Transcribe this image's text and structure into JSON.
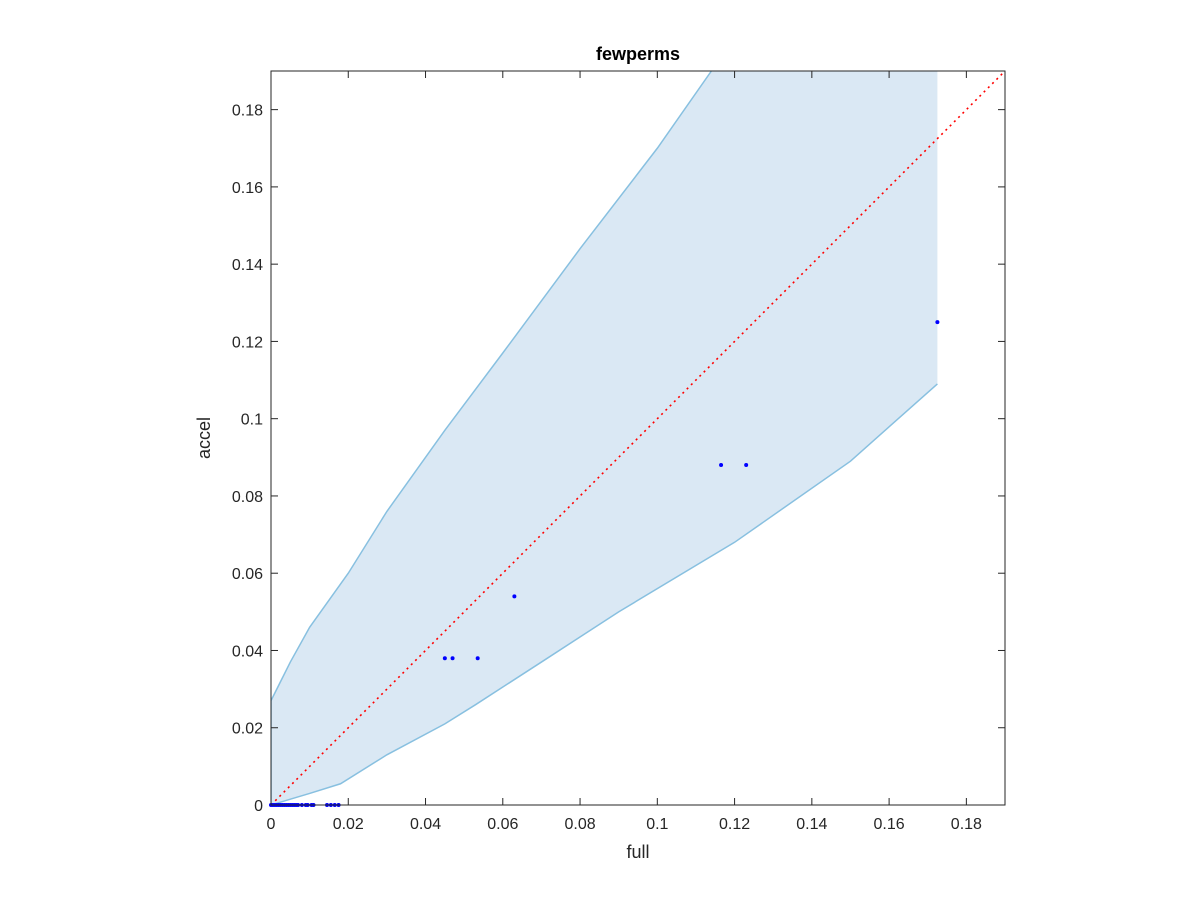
{
  "chart_data": {
    "type": "scatter",
    "title": "fewperms",
    "xlabel": "full",
    "ylabel": "accel",
    "xlim": [
      0,
      0.19
    ],
    "ylim": [
      0,
      0.19
    ],
    "xticks": [
      0,
      0.02,
      0.04,
      0.06,
      0.08,
      0.1,
      0.12,
      0.14,
      0.16,
      0.18
    ],
    "xtick_labels": [
      "0",
      "0.02",
      "0.04",
      "0.06",
      "0.08",
      "0.1",
      "0.12",
      "0.14",
      "0.16",
      "0.18"
    ],
    "yticks": [
      0,
      0.02,
      0.04,
      0.06,
      0.08,
      0.1,
      0.12,
      0.14,
      0.16,
      0.18
    ],
    "ytick_labels": [
      "0",
      "0.02",
      "0.04",
      "0.06",
      "0.08",
      "0.1",
      "0.12",
      "0.14",
      "0.16",
      "0.18"
    ],
    "grid": false,
    "colors": {
      "band_fill": "#dae8f4",
      "band_edge": "#88c0e0",
      "points": "#0000ff",
      "reference": "#ff0000",
      "axes": "#262626"
    },
    "confidence_band": {
      "upper": [
        [
          0,
          0.027
        ],
        [
          0.002,
          0.031
        ],
        [
          0.005,
          0.037
        ],
        [
          0.01,
          0.046
        ],
        [
          0.02,
          0.06
        ],
        [
          0.03,
          0.076
        ],
        [
          0.045,
          0.097
        ],
        [
          0.06,
          0.117
        ],
        [
          0.08,
          0.144
        ],
        [
          0.1,
          0.17
        ],
        [
          0.114,
          0.19
        ]
      ],
      "lower": [
        [
          0,
          0.0
        ],
        [
          0.005,
          0.0015
        ],
        [
          0.01,
          0.003
        ],
        [
          0.018,
          0.0055
        ],
        [
          0.03,
          0.013
        ],
        [
          0.045,
          0.021
        ],
        [
          0.053,
          0.026
        ],
        [
          0.07,
          0.037
        ],
        [
          0.09,
          0.05
        ],
        [
          0.12,
          0.068
        ],
        [
          0.15,
          0.089
        ],
        [
          0.1725,
          0.109
        ]
      ],
      "x_end": 0.1725
    },
    "reference_line": [
      [
        0,
        0
      ],
      [
        0.19,
        0.19
      ]
    ],
    "points": [
      {
        "x": 0.0,
        "y": 0.0
      },
      {
        "x": 0.0005,
        "y": 0.0
      },
      {
        "x": 0.001,
        "y": 0.0
      },
      {
        "x": 0.0015,
        "y": 0.0
      },
      {
        "x": 0.002,
        "y": 0.0
      },
      {
        "x": 0.0025,
        "y": 0.0
      },
      {
        "x": 0.003,
        "y": 0.0
      },
      {
        "x": 0.0035,
        "y": 0.0
      },
      {
        "x": 0.004,
        "y": 0.0
      },
      {
        "x": 0.0045,
        "y": 0.0
      },
      {
        "x": 0.005,
        "y": 0.0
      },
      {
        "x": 0.0055,
        "y": 0.0
      },
      {
        "x": 0.006,
        "y": 0.0
      },
      {
        "x": 0.0065,
        "y": 0.0
      },
      {
        "x": 0.007,
        "y": 0.0
      },
      {
        "x": 0.008,
        "y": 0.0
      },
      {
        "x": 0.009,
        "y": 0.0
      },
      {
        "x": 0.0095,
        "y": 0.0
      },
      {
        "x": 0.0105,
        "y": 0.0
      },
      {
        "x": 0.011,
        "y": 0.0
      },
      {
        "x": 0.0145,
        "y": 0.0
      },
      {
        "x": 0.0155,
        "y": 0.0
      },
      {
        "x": 0.0165,
        "y": 0.0
      },
      {
        "x": 0.0175,
        "y": 0.0
      },
      {
        "x": 0.045,
        "y": 0.038
      },
      {
        "x": 0.047,
        "y": 0.038
      },
      {
        "x": 0.0535,
        "y": 0.038
      },
      {
        "x": 0.063,
        "y": 0.054
      },
      {
        "x": 0.1165,
        "y": 0.088
      },
      {
        "x": 0.123,
        "y": 0.088
      },
      {
        "x": 0.1725,
        "y": 0.125
      }
    ]
  }
}
